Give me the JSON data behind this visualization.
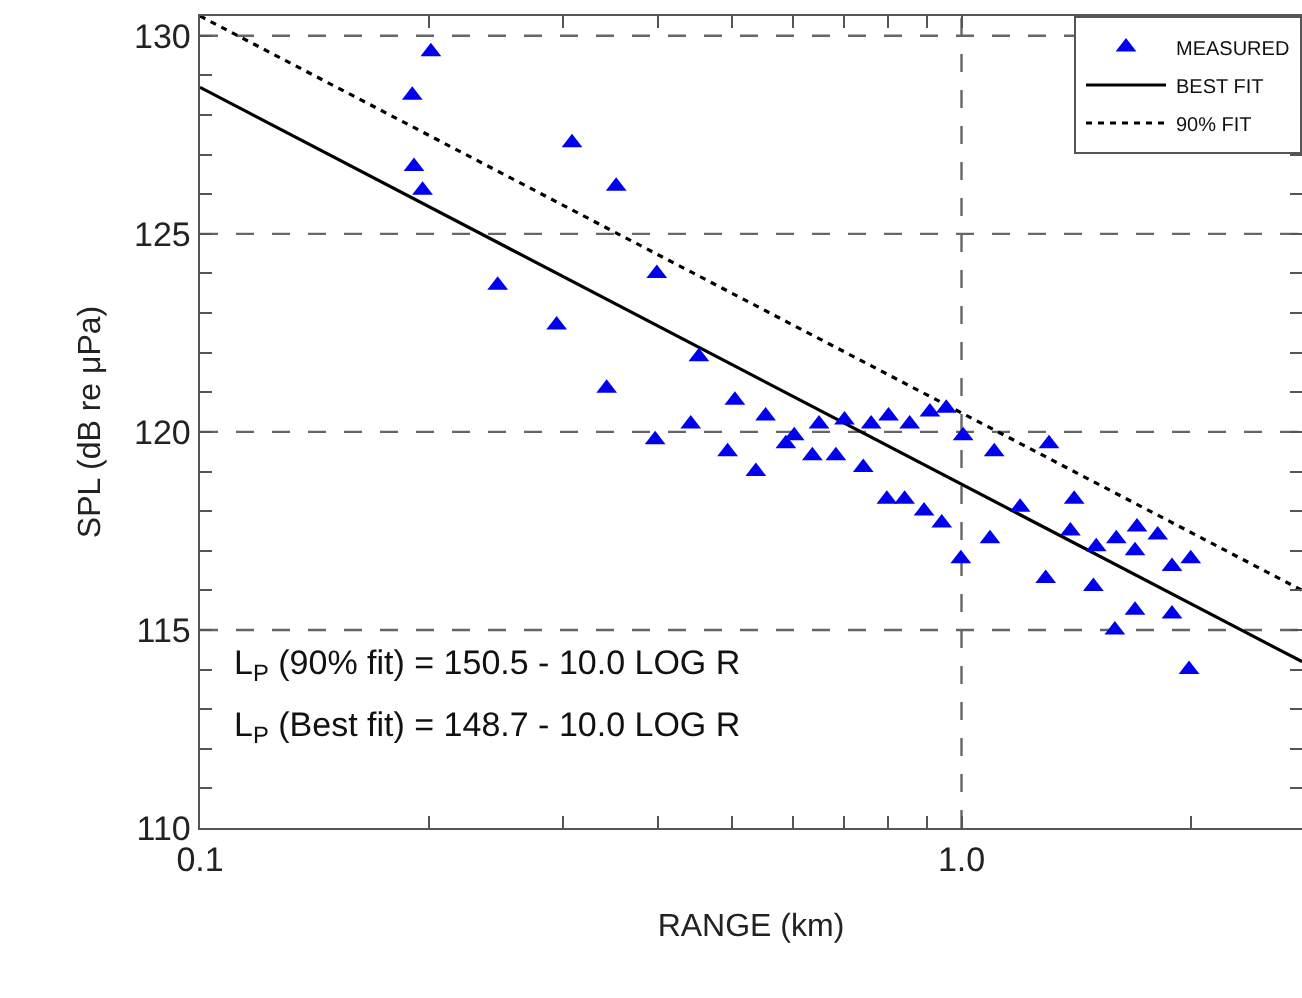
{
  "chart_data": {
    "type": "scatter",
    "xlabel": "RANGE (km)",
    "ylabel": "SPL (dB re μPa)",
    "log": "x",
    "grid": true,
    "legend": "top right",
    "marker": "triangle",
    "xlim": [
      0.1,
      2.8
    ],
    "xticks": [
      0.1,
      {
        "value": 0.2,
        "label": null
      },
      {
        "value": 0.3,
        "label": null
      },
      {
        "value": 0.4,
        "label": null
      },
      {
        "value": 0.5,
        "label": null
      },
      {
        "value": 0.6,
        "label": null
      },
      {
        "value": 0.7,
        "label": null
      },
      {
        "value": 0.8,
        "label": null
      },
      {
        "value": 0.9,
        "label": null
      },
      {
        "value": 1,
        "label": "1.0"
      },
      {
        "value": 2,
        "label": null
      }
    ],
    "ylim": [
      110,
      130.5
    ],
    "yticks": [
      110,
      {
        "value": 111,
        "label": null
      },
      {
        "value": 112,
        "label": null
      },
      {
        "value": 113,
        "label": null
      },
      {
        "value": 114,
        "label": null
      },
      115,
      {
        "value": 116,
        "label": null
      },
      {
        "value": 117,
        "label": null
      },
      {
        "value": 118,
        "label": null
      },
      {
        "value": 119,
        "label": null
      },
      120,
      {
        "value": 121,
        "label": null
      },
      {
        "value": 122,
        "label": null
      },
      {
        "value": 123,
        "label": null
      },
      {
        "value": 124,
        "label": null
      },
      125,
      {
        "value": 126,
        "label": null
      },
      {
        "value": 127,
        "label": null
      },
      {
        "value": 128,
        "label": null
      },
      {
        "value": 129,
        "label": null
      },
      130
    ],
    "annotations": [
      "L$_{P}$ (90% fit) = 150.5 - 10.0 LOG R",
      "L$_{P}$ (Best fit) = 148.7 - 10.0 LOG R"
    ],
    "series": [
      {
        "name": "MEASURED",
        "color": "#0000ee",
        "x": [
          0.201,
          0.19,
          0.191,
          0.196,
          0.308,
          0.352,
          0.246,
          0.294,
          0.398,
          0.452,
          0.342,
          0.504,
          0.553,
          0.441,
          0.396,
          0.493,
          0.537,
          0.588,
          0.603,
          0.65,
          0.637,
          0.684,
          0.702,
          0.743,
          0.761,
          0.802,
          0.855,
          0.909,
          0.955,
          0.798,
          0.842,
          0.893,
          0.942,
          1.005,
          0.998,
          1.104,
          1.09,
          1.194,
          1.303,
          1.29,
          1.406,
          1.39,
          1.503,
          1.49,
          1.597,
          1.59,
          1.7,
          1.69,
          1.69,
          1.81,
          1.89,
          1.89,
          2.0,
          1.99
        ],
        "values": [
          129.6,
          128.5,
          126.7,
          126.1,
          127.3,
          126.2,
          123.7,
          122.7,
          124.0,
          121.9,
          121.1,
          120.8,
          120.4,
          120.2,
          119.8,
          119.5,
          119.0,
          119.7,
          119.9,
          120.2,
          119.4,
          119.4,
          120.3,
          119.1,
          120.2,
          120.4,
          120.2,
          120.5,
          120.6,
          118.3,
          118.3,
          118.0,
          117.7,
          119.9,
          116.8,
          119.5,
          117.3,
          118.1,
          119.7,
          116.3,
          118.3,
          117.5,
          117.1,
          116.1,
          117.3,
          115.0,
          117.6,
          117.0,
          115.5,
          117.4,
          116.6,
          115.4,
          116.8,
          114.0
        ]
      },
      {
        "name": "BEST FIT",
        "type": "line",
        "marker": "none",
        "line_style": "solid",
        "color": "#000000",
        "x": [
          0.1,
          2.8
        ],
        "values": [
          128.7,
          114.2
        ]
      },
      {
        "name": "90% FIT",
        "type": "line",
        "marker": "none",
        "line_style": "dotted",
        "color": "#000000",
        "x": [
          0.1,
          2.8
        ],
        "values": [
          130.5,
          116.0
        ]
      }
    ]
  }
}
